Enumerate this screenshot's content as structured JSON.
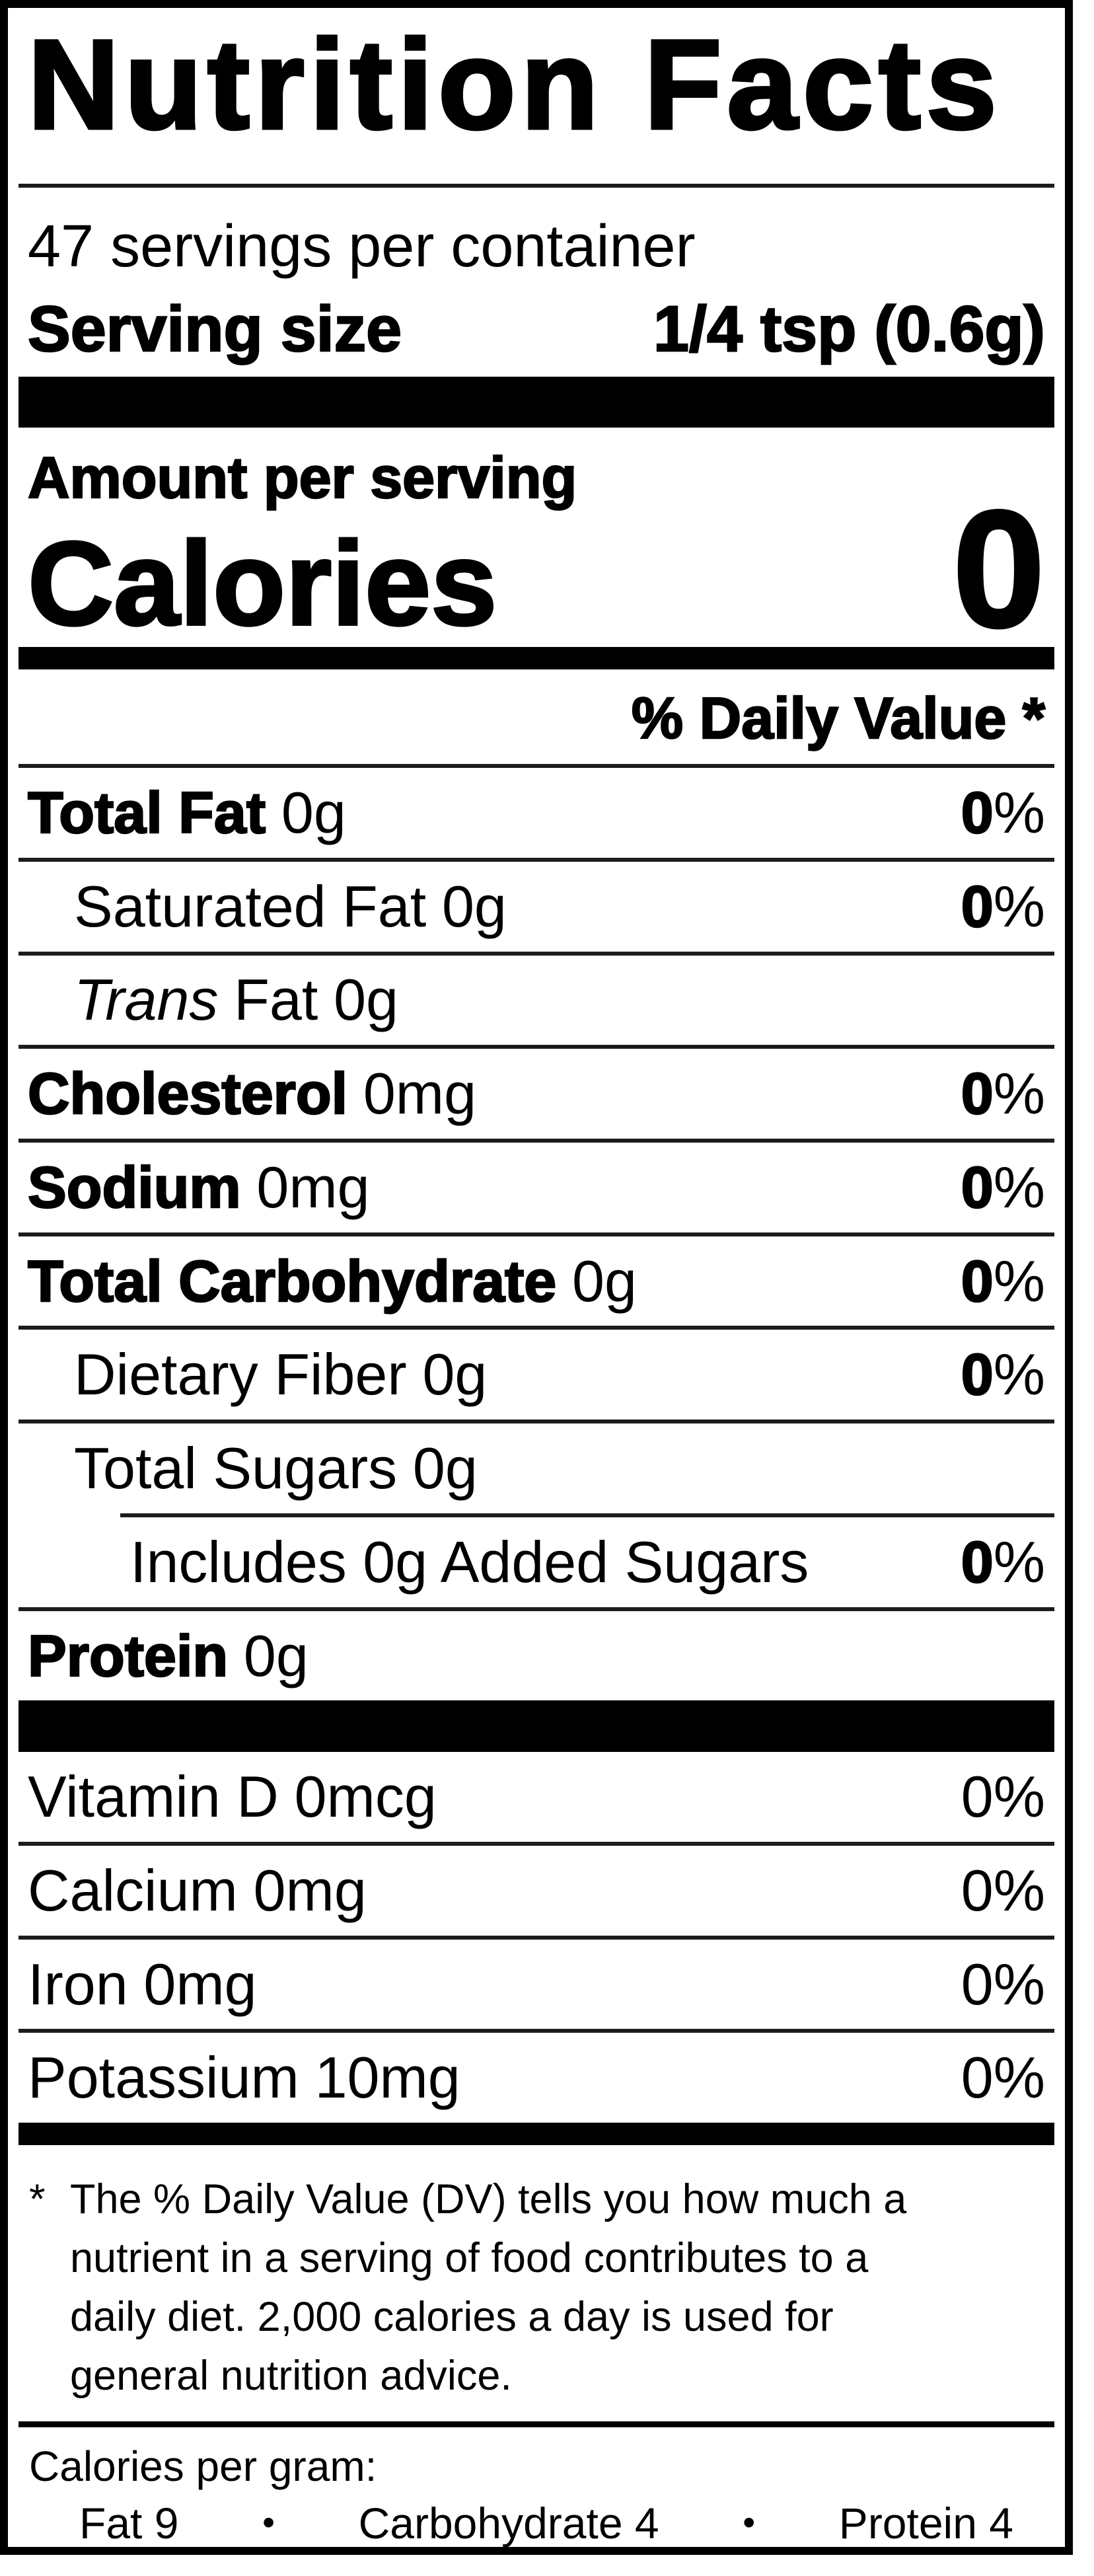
{
  "label": {
    "title": "Nutrition Facts",
    "servings_per_container": "47 servings per container",
    "serving_size": {
      "label": "Serving size",
      "value": "1/4 tsp (0.6g)"
    },
    "amount_per_serving": "Amount per serving",
    "calories": {
      "label": "Calories",
      "value": "0"
    },
    "daily_value_header": "% Daily Value *",
    "nutrients": [
      {
        "name": "Total Fat",
        "amount": "0g",
        "dv": "0",
        "pct": "%"
      },
      {
        "name": "Saturated Fat",
        "amount": "0g",
        "dv": "0",
        "pct": "%"
      },
      {
        "prefix": "Trans",
        "name": "Fat",
        "amount": "0g"
      },
      {
        "name": "Cholesterol",
        "amount": "0mg",
        "dv": "0",
        "pct": "%"
      },
      {
        "name": "Sodium",
        "amount": "0mg",
        "dv": "0",
        "pct": "%"
      },
      {
        "name": "Total Carbohydrate",
        "amount": "0g",
        "dv": "0",
        "pct": "%"
      },
      {
        "name": "Dietary Fiber",
        "amount": "0g",
        "dv": "0",
        "pct": "%"
      },
      {
        "name": "Total Sugars",
        "amount": "0g"
      },
      {
        "name": "Includes 0g Added Sugars",
        "dv": "0",
        "pct": "%"
      },
      {
        "name": "Protein",
        "amount": "0g"
      }
    ],
    "micronutrients": [
      {
        "name": "Vitamin D",
        "amount": "0mcg",
        "dv": "0",
        "pct": "%"
      },
      {
        "name": "Calcium",
        "amount": "0mg",
        "dv": "0",
        "pct": "%"
      },
      {
        "name": "Iron",
        "amount": "0mg",
        "dv": "0",
        "pct": "%"
      },
      {
        "name": "Potassium",
        "amount": "10mg",
        "dv": "0",
        "pct": "%"
      }
    ],
    "footnote": {
      "marker": "*",
      "lines": [
        "The % Daily Value (DV) tells you how much a",
        "nutrient in a serving of food contributes to a",
        "daily diet. 2,000 calories a day is used for",
        "general nutrition advice."
      ]
    },
    "calories_per_gram": {
      "label": "Calories per gram:",
      "items": [
        "Fat 9",
        "Carbohydrate 4",
        "Protein 4"
      ],
      "separator": "•"
    },
    "colors": {
      "ink": "#000000",
      "paper": "#ffffff"
    }
  }
}
